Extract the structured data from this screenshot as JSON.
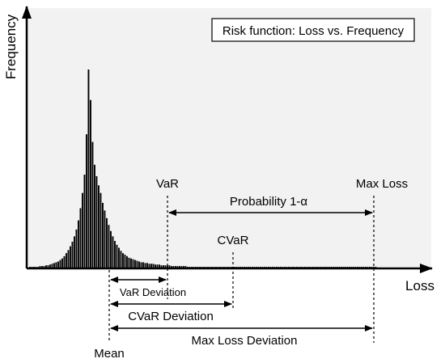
{
  "title_box": "Risk function: Loss vs. Frequency",
  "axes": {
    "y_label": "Frequency",
    "x_label": "Loss"
  },
  "markers": {
    "var": "VaR",
    "cvar": "CVaR",
    "max_loss": "Max Loss",
    "mean": "Mean"
  },
  "annotations": {
    "probability": "Probability 1-α",
    "var_deviation": "VaR Deviation",
    "cvar_deviation": "CVaR Deviation",
    "max_loss_deviation": "Max Loss Deviation"
  },
  "chart_data": {
    "type": "bar",
    "values": [
      1,
      1,
      1,
      1,
      1,
      2,
      2,
      2,
      3,
      3,
      4,
      5,
      6,
      7,
      8,
      10,
      12,
      15,
      19,
      23,
      28,
      34,
      41,
      50,
      62,
      78,
      98,
      122,
      175,
      260,
      220,
      165,
      135,
      120,
      108,
      98,
      85,
      75,
      65,
      56,
      48,
      41,
      35,
      30,
      26,
      22,
      19,
      17,
      15,
      13,
      12,
      11,
      10,
      9,
      8,
      7,
      7,
      6,
      6,
      5,
      5,
      5,
      4,
      4,
      4,
      3,
      3,
      3,
      3,
      3,
      2,
      2,
      2,
      2,
      2,
      2,
      2,
      2,
      1,
      1,
      1,
      1,
      1,
      1,
      1,
      1,
      1,
      1,
      1,
      1,
      1,
      1,
      1,
      1,
      1,
      1,
      1,
      1,
      1,
      1,
      1,
      1,
      1,
      1,
      1,
      1,
      1,
      1,
      1,
      1,
      1,
      1,
      1,
      1,
      1,
      1,
      1,
      1,
      1,
      1,
      1,
      1,
      1,
      1,
      1,
      1,
      1,
      1,
      1,
      1,
      1,
      1,
      1,
      1,
      1,
      1,
      1,
      1,
      1,
      1,
      1,
      1,
      1,
      1,
      1,
      1,
      1,
      1,
      1,
      1,
      1,
      1,
      1,
      1,
      1,
      1,
      1,
      1,
      1,
      1,
      1,
      1,
      1,
      1,
      1,
      1,
      1,
      1,
      1,
      1,
      1,
      1
    ],
    "grid": false,
    "legend": "none"
  }
}
